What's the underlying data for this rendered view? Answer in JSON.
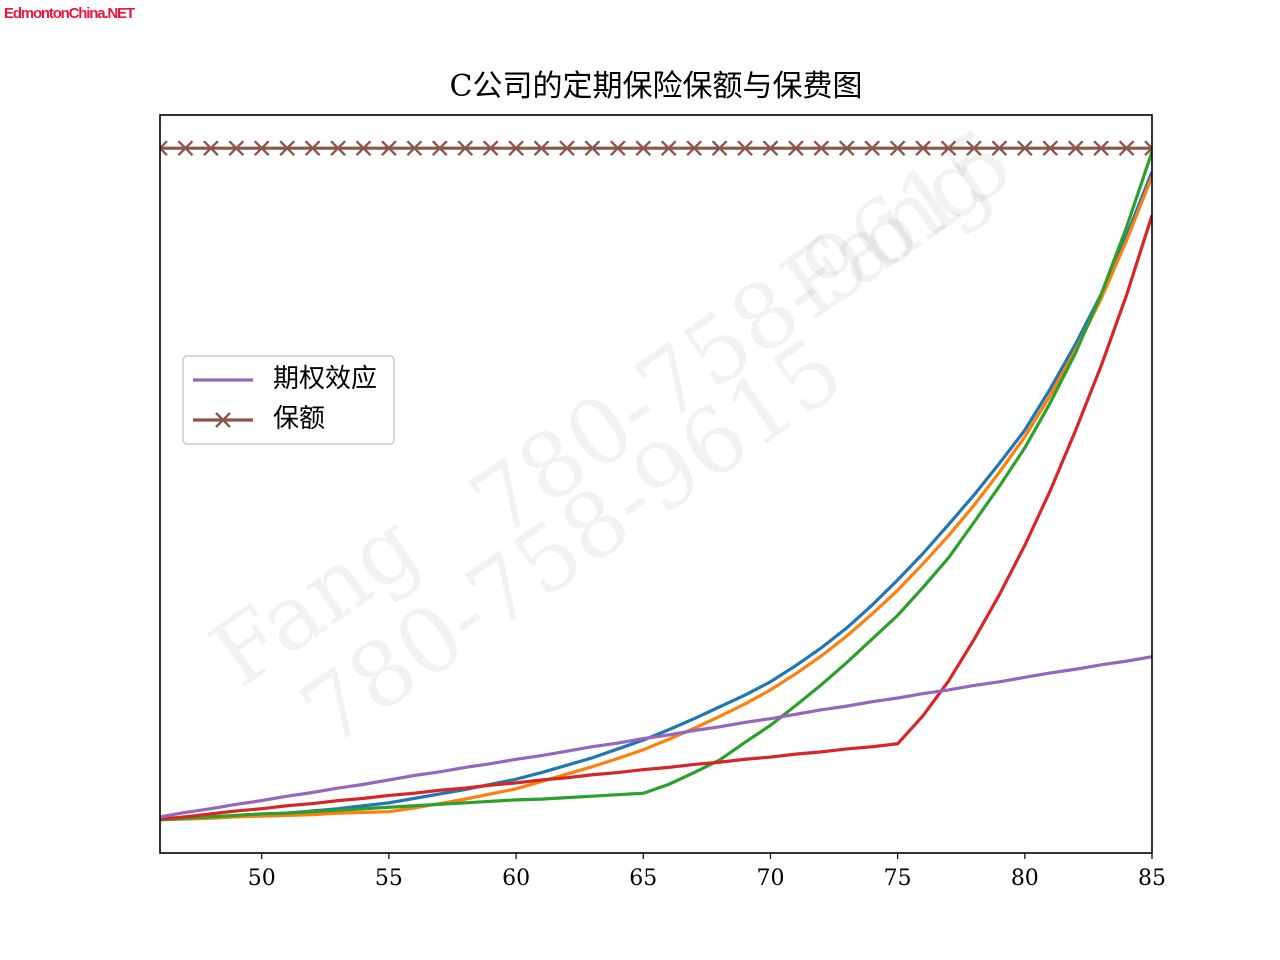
{
  "site_label": "EdmontonChina.NET",
  "watermarks": [
    "Fang",
    "780-758-9615"
  ],
  "chart_data": {
    "type": "line",
    "title": "C公司的定期保险保额与保费图",
    "x": [
      46,
      47,
      48,
      49,
      50,
      51,
      52,
      53,
      54,
      55,
      56,
      57,
      58,
      59,
      60,
      61,
      62,
      63,
      64,
      65,
      66,
      67,
      68,
      69,
      70,
      71,
      72,
      73,
      74,
      75,
      76,
      77,
      78,
      79,
      80,
      81,
      82,
      83,
      84,
      85
    ],
    "xlim": [
      46,
      85
    ],
    "xticks": [
      50,
      55,
      60,
      65,
      70,
      75,
      80,
      85
    ],
    "ylim": [
      0,
      100
    ],
    "legend": "center left",
    "series": [
      {
        "color": "#1f77b4",
        "values": [
          4.6,
          4.7,
          4.8,
          4.9,
          5.1,
          5.4,
          5.7,
          6.0,
          6.4,
          6.8,
          7.4,
          8.0,
          8.6,
          9.3,
          10.0,
          10.9,
          11.9,
          12.9,
          14.1,
          15.3,
          16.7,
          18.2,
          19.8,
          21.4,
          23.2,
          25.4,
          27.8,
          30.5,
          33.6,
          37.0,
          40.6,
          44.5,
          48.5,
          52.8,
          57.3,
          62.9,
          69.0,
          75.7,
          83.6,
          92.3
        ]
      },
      {
        "color": "#ff7f0e",
        "values": [
          4.5,
          4.6,
          4.7,
          4.9,
          5.0,
          5.1,
          5.2,
          5.4,
          5.5,
          5.6,
          6.1,
          6.7,
          7.3,
          8.0,
          8.7,
          9.7,
          10.7,
          11.7,
          12.8,
          14.0,
          15.4,
          16.9,
          18.5,
          20.2,
          22.1,
          24.3,
          26.7,
          29.4,
          32.4,
          35.6,
          39.2,
          43.0,
          47.1,
          51.6,
          56.4,
          62.0,
          68.2,
          75.1,
          83.0,
          91.7
        ]
      },
      {
        "color": "#2ca02c",
        "values": [
          4.5,
          4.7,
          4.9,
          5.1,
          5.3,
          5.4,
          5.6,
          5.8,
          6.0,
          6.2,
          6.4,
          6.6,
          6.8,
          7.0,
          7.2,
          7.3,
          7.5,
          7.7,
          7.9,
          8.1,
          9.3,
          10.9,
          12.6,
          15.0,
          17.3,
          20.0,
          22.8,
          25.8,
          29.0,
          32.2,
          36.0,
          40.0,
          44.8,
          49.7,
          54.9,
          61.0,
          67.8,
          75.7,
          84.8,
          95.0
        ]
      },
      {
        "color": "#d62728",
        "values": [
          4.6,
          4.9,
          5.3,
          5.7,
          6.0,
          6.4,
          6.7,
          7.1,
          7.4,
          7.8,
          8.1,
          8.5,
          8.8,
          9.2,
          9.5,
          9.9,
          10.2,
          10.6,
          10.9,
          11.3,
          11.6,
          12.0,
          12.3,
          12.7,
          13.0,
          13.4,
          13.7,
          14.1,
          14.4,
          14.8,
          18.6,
          23.3,
          28.9,
          35.0,
          41.7,
          49.1,
          57.3,
          66.0,
          75.6,
          86.4
        ]
      },
      {
        "name": "期权效应",
        "color": "#9467bd",
        "values": [
          4.9,
          5.5,
          6.0,
          6.6,
          7.1,
          7.7,
          8.2,
          8.8,
          9.3,
          9.9,
          10.5,
          11.0,
          11.6,
          12.1,
          12.7,
          13.2,
          13.8,
          14.4,
          14.9,
          15.5,
          16.0,
          16.6,
          17.1,
          17.7,
          18.2,
          18.8,
          19.4,
          19.9,
          20.5,
          21.0,
          21.6,
          22.1,
          22.7,
          23.2,
          23.8,
          24.4,
          24.9,
          25.5,
          26.0,
          26.6
        ]
      },
      {
        "name": "保额",
        "color": "#8c564b",
        "marker": "x",
        "values": [
          95.5,
          95.5,
          95.5,
          95.5,
          95.5,
          95.5,
          95.5,
          95.5,
          95.5,
          95.5,
          95.5,
          95.5,
          95.5,
          95.5,
          95.5,
          95.5,
          95.5,
          95.5,
          95.5,
          95.5,
          95.5,
          95.5,
          95.5,
          95.5,
          95.5,
          95.5,
          95.5,
          95.5,
          95.5,
          95.5,
          95.5,
          95.5,
          95.5,
          95.5,
          95.5,
          95.5,
          95.5,
          95.5,
          95.5,
          95.5
        ]
      }
    ]
  }
}
